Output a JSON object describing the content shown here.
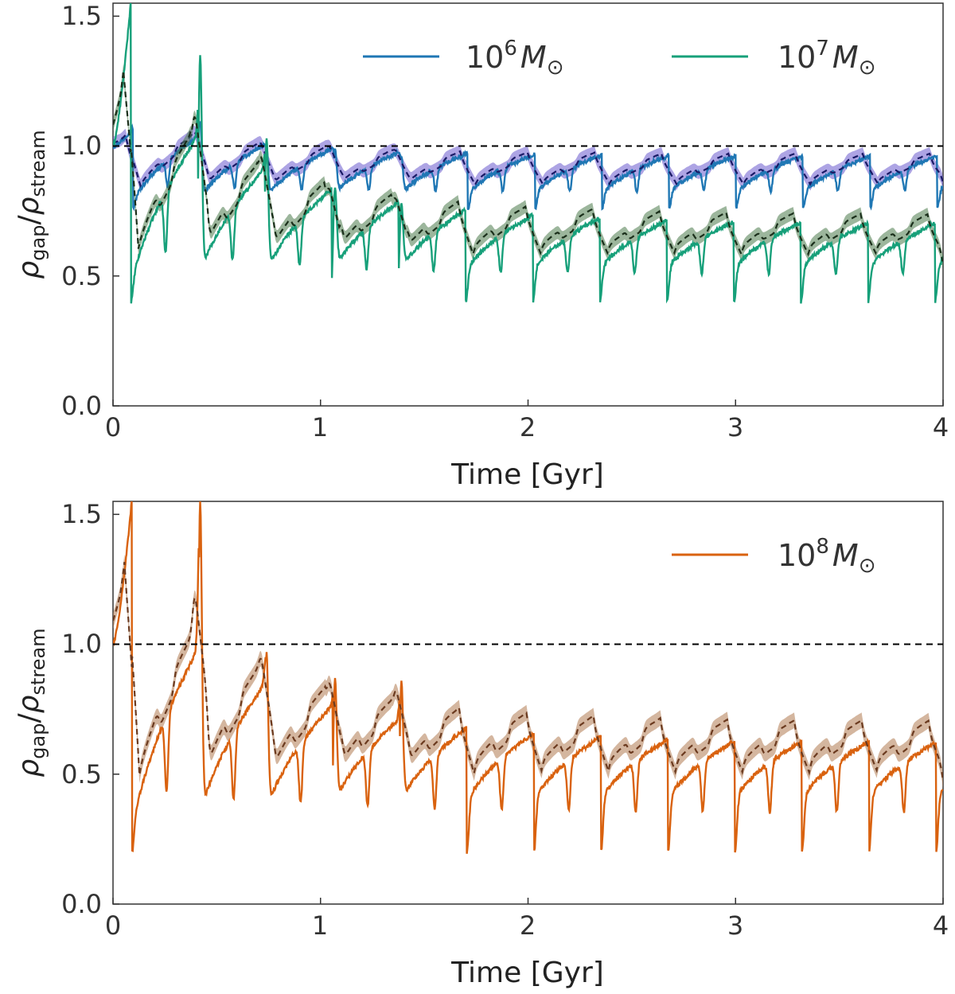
{
  "chart_data": [
    {
      "type": "line",
      "xlabel": "Time [Gyr]",
      "ylabel": "ρ_gap/ρ_stream",
      "ylabel_parts": {
        "rho1": "ρ",
        "sub1": "gap",
        "slash": "/",
        "rho2": "ρ",
        "sub2": "stream"
      },
      "xlim": [
        0,
        4
      ],
      "ylim": [
        0,
        1.55
      ],
      "xticks": [
        0,
        1,
        2,
        3,
        4
      ],
      "xtick_labels": [
        "0",
        "1",
        "2",
        "3",
        "4"
      ],
      "yticks": [
        0.0,
        0.5,
        1.0,
        1.5
      ],
      "ytick_labels": [
        "0.0",
        "0.5",
        "1.0",
        "1.5"
      ],
      "reference_line": 1.0,
      "legend_position": "top-right",
      "series": [
        {
          "name": "10^6 M_sun",
          "legend_parts": {
            "base": "10",
            "exp": "6",
            "sym": "M",
            "sub": "⊙"
          },
          "color": "#1f77b4",
          "mean_color": "#1a1a66",
          "band_color": "#6a5acd",
          "orbit_period": 0.323,
          "first_peak": 0.095,
          "start_value": 1.0,
          "peak_value": 1.07,
          "trough_value": 0.76,
          "secondary_value": 0.86,
          "long_term_value": 0.84,
          "transient_peaks": [
            {
              "t": 0.42,
              "value": 1.09
            },
            {
              "t": 0.74,
              "value": 1.0
            },
            {
              "t": 1.07,
              "value": 0.99
            },
            {
              "t": 1.39,
              "value": 0.96
            }
          ],
          "mean_offset": 0.02,
          "band_halfwidth": 0.025
        },
        {
          "name": "10^7 M_sun",
          "legend_parts": {
            "base": "10",
            "exp": "7",
            "sym": "M",
            "sub": "⊙"
          },
          "color": "#17a07a",
          "mean_color": "#1a2e1a",
          "band_color": "#4a7a4a",
          "orbit_period": 0.323,
          "first_peak": 0.085,
          "start_value": 1.0,
          "peak_value": 1.55,
          "trough_value": 0.4,
          "secondary_value": 0.58,
          "long_term_value": 0.58,
          "transient_peaks": [
            {
              "t": 0.42,
              "value": 1.35
            },
            {
              "t": 0.74,
              "value": 1.03
            },
            {
              "t": 1.07,
              "value": 0.84
            },
            {
              "t": 1.39,
              "value": 0.78
            }
          ],
          "mean_offset": 0.05,
          "band_halfwidth": 0.025
        }
      ]
    },
    {
      "type": "line",
      "xlabel": "Time [Gyr]",
      "ylabel": "ρ_gap/ρ_stream",
      "ylabel_parts": {
        "rho1": "ρ",
        "sub1": "gap",
        "slash": "/",
        "rho2": "ρ",
        "sub2": "stream"
      },
      "xlim": [
        0,
        4
      ],
      "ylim": [
        0,
        1.55
      ],
      "xticks": [
        0,
        1,
        2,
        3,
        4
      ],
      "xtick_labels": [
        "0",
        "1",
        "2",
        "3",
        "4"
      ],
      "yticks": [
        0.0,
        0.5,
        1.0,
        1.5
      ],
      "ytick_labels": [
        "0.0",
        "0.5",
        "1.0",
        "1.5"
      ],
      "reference_line": 1.0,
      "legend_position": "top-right",
      "series": [
        {
          "name": "10^8 M_sun",
          "legend_parts": {
            "base": "10",
            "exp": "8",
            "sym": "M",
            "sub": "⊙"
          },
          "color": "#d9620f",
          "mean_color": "#6b3a1f",
          "band_color": "#b07a50",
          "orbit_period": 0.323,
          "first_peak": 0.09,
          "start_value": 1.0,
          "peak_value": 1.55,
          "trough_value": 0.2,
          "secondary_value": 0.47,
          "long_term_value": 0.5,
          "transient_peaks": [
            {
              "t": 0.42,
              "value": 1.55
            },
            {
              "t": 0.74,
              "value": 0.97
            },
            {
              "t": 1.07,
              "value": 0.87
            },
            {
              "t": 1.39,
              "value": 0.86
            }
          ],
          "mean_offset": 0.1,
          "band_halfwidth": 0.03
        }
      ]
    }
  ]
}
